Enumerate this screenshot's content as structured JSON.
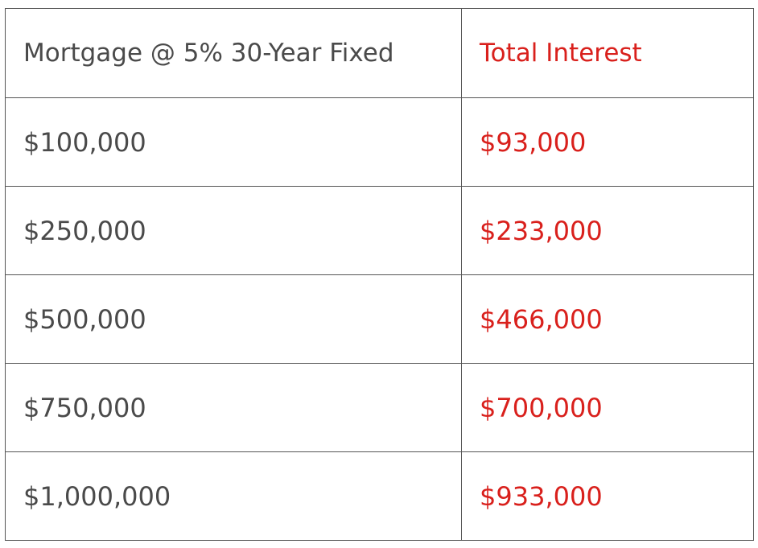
{
  "table": {
    "headers": {
      "mortgage": "Mortgage @ 5% 30-Year Fixed",
      "interest": "Total Interest"
    },
    "rows": [
      {
        "mortgage": "$100,000",
        "interest": "$93,000"
      },
      {
        "mortgage": "$250,000",
        "interest": "$233,000"
      },
      {
        "mortgage": "$500,000",
        "interest": "$466,000"
      },
      {
        "mortgage": "$750,000",
        "interest": "$700,000"
      },
      {
        "mortgage": "$1,000,000",
        "interest": "$933,000"
      }
    ]
  },
  "colors": {
    "text_primary": "#4a4a4a",
    "text_accent": "#d9201c",
    "border": "#555555"
  }
}
